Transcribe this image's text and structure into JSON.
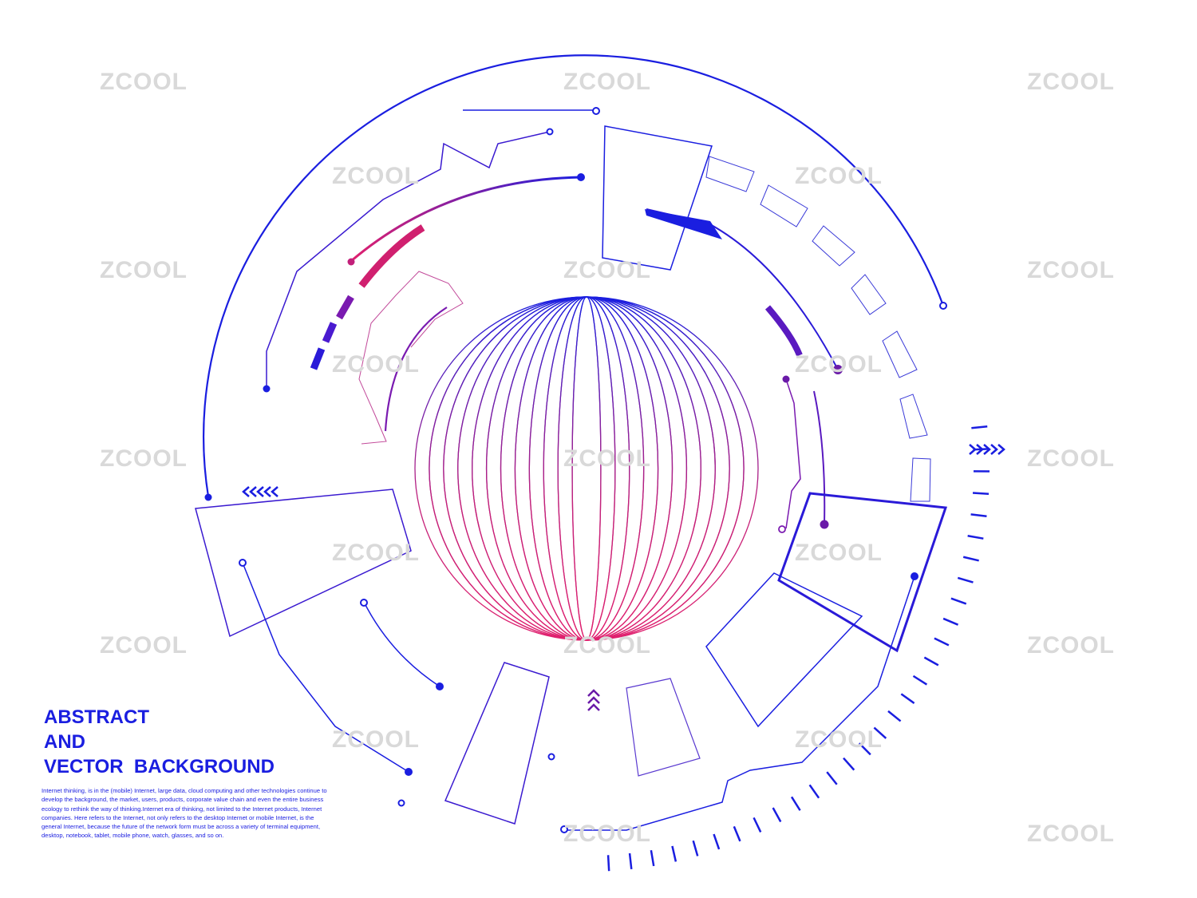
{
  "colors": {
    "blue": "#1a1ee0",
    "magenta": "#e0206e",
    "purple": "#6a1aa8",
    "watermark": "#d9d9d9"
  },
  "watermark": "ZCOOL",
  "headline": {
    "line1": "ABSTRACT",
    "line2": "AND",
    "line3": "VECTOR  BACKGROUND"
  },
  "body_text": "Internet thinking, is in the (mobile) Internet, large data, cloud computing and other technologies continue to develop the background, the market, users, products, corporate value chain and even the entire business ecology to rethink the way of thinking.Internet era of thinking, not limited to the Internet products, Internet companies. Here refers to the Internet, not only refers to the desktop Internet or mobile Internet, is the general Internet, because the future of the network form must be across a variety of terminal equipment, desktop, notebook, tablet, mobile phone, watch, glasses, and so on."
}
